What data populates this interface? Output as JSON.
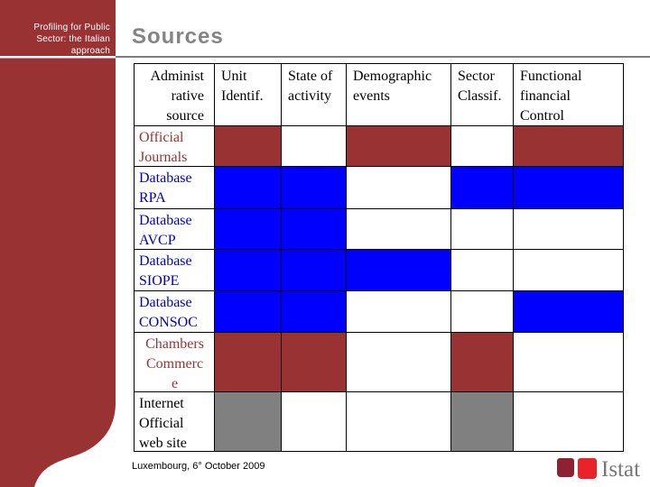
{
  "slide": {
    "sidebar": {
      "subtitle": "Profiling for Public\nSector: the Italian\napproach"
    },
    "header": {
      "title": "Sources"
    },
    "table": {
      "corner_header": "Administ\nrative\nsource",
      "columns": [
        {
          "label": "Unit\nIdentif."
        },
        {
          "label": "State of\nactivity"
        },
        {
          "label": "Demographic\nevents"
        },
        {
          "label": "Sector\nClassif."
        },
        {
          "label": "Functional\nfinancial\nControl"
        }
      ],
      "rows": [
        {
          "label": "Official\nJournals",
          "label_color": "maroon",
          "align": "left",
          "cells": [
            "maroon",
            "white",
            "maroon",
            "white",
            "maroon"
          ]
        },
        {
          "label": "Database\nRPA",
          "label_color": "blue",
          "align": "left",
          "cells": [
            "blue",
            "blue",
            "white",
            "blue",
            "blue"
          ]
        },
        {
          "label": "Database\nAVCP",
          "label_color": "blue",
          "align": "left",
          "cells": [
            "blue",
            "blue",
            "white",
            "white",
            "white"
          ]
        },
        {
          "label": "Database\nSIOPE",
          "label_color": "blue",
          "align": "left",
          "cells": [
            "blue",
            "blue",
            "blue",
            "white",
            "white"
          ]
        },
        {
          "label": "Database\nCONSOC",
          "label_color": "blue",
          "align": "left",
          "cells": [
            "blue",
            "blue",
            "white",
            "white",
            "blue"
          ]
        },
        {
          "label": "Chambers\nCommerc\ne",
          "label_color": "maroon",
          "align": "center",
          "cells": [
            "maroon",
            "maroon",
            "white",
            "maroon",
            "white"
          ]
        },
        {
          "label": "Internet\nOfficial\nweb site",
          "label_color": "black",
          "align": "left",
          "cells": [
            "gray",
            "white",
            "white",
            "gray",
            "white"
          ]
        }
      ]
    },
    "footer": {
      "date": "Luxembourg, 6° October 2009"
    },
    "logo": {
      "text": "Istat"
    },
    "colors": {
      "sidebar_maroon": "#993333",
      "cell_maroon": "#993333",
      "cell_blue": "#0000ff",
      "cell_gray": "#808080",
      "cell_white": "#ffffff",
      "label_maroon": "#993333",
      "label_blue": "#0000cc",
      "label_black": "#000000",
      "title_gray": "#848484",
      "logo_dark_red": "#8e2233",
      "logo_bright_red": "#e8232a",
      "logo_text_gray": "#777777"
    }
  }
}
